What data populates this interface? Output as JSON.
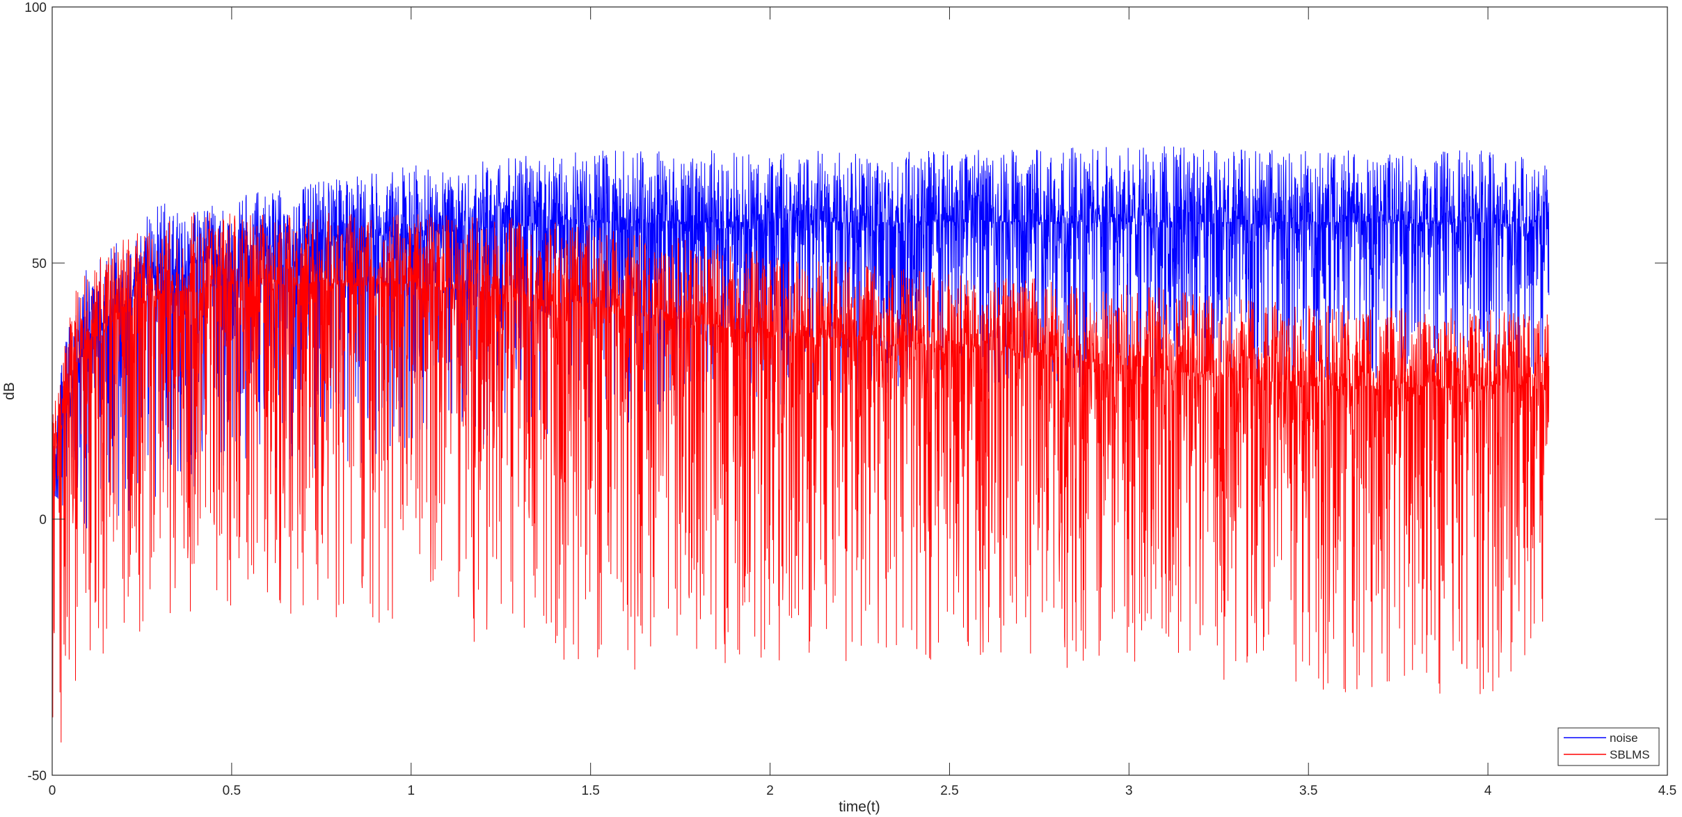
{
  "chart_data": {
    "type": "line",
    "title": "",
    "xlabel": "time(t)",
    "ylabel": "dB",
    "xlim": [
      0,
      4.5
    ],
    "ylim": [
      -50,
      100
    ],
    "x_ticks": [
      0,
      0.5,
      1,
      1.5,
      2,
      2.5,
      3,
      3.5,
      4,
      4.5
    ],
    "x_tick_labels": [
      "0",
      "0.5",
      "1",
      "1.5",
      "2",
      "2.5",
      "3",
      "3.5",
      "4",
      "4.5"
    ],
    "y_ticks": [
      -50,
      0,
      50,
      100
    ],
    "y_tick_labels": [
      "-50",
      "0",
      "50",
      "100"
    ],
    "grid": false,
    "legend_position": "bottom-right",
    "x_end": 4.17,
    "series": [
      {
        "name": "noise",
        "color": "#0000ff",
        "envelope": {
          "t": [
            0,
            0.05,
            0.1,
            0.2,
            0.3,
            0.4,
            0.5,
            0.75,
            1.0,
            1.5,
            2.0,
            2.5,
            3.0,
            3.5,
            4.0,
            4.17
          ],
          "upper": [
            20,
            40,
            50,
            55,
            62,
            60,
            63,
            66,
            69,
            72,
            72,
            72,
            73,
            72,
            72,
            70
          ],
          "lower": [
            5,
            0,
            -2,
            -1,
            2,
            5,
            8,
            10,
            12,
            18,
            22,
            24,
            26,
            27,
            28,
            28
          ],
          "median": [
            10,
            25,
            35,
            42,
            48,
            50,
            52,
            54,
            56,
            58,
            58,
            58,
            58,
            58,
            58,
            57
          ]
        }
      },
      {
        "name": "SBLMS",
        "color": "#ff0000",
        "envelope": {
          "t": [
            0,
            0.05,
            0.1,
            0.2,
            0.3,
            0.4,
            0.5,
            0.75,
            1.0,
            1.5,
            2.0,
            2.5,
            3.0,
            3.5,
            4.0,
            4.17
          ],
          "upper": [
            20,
            42,
            50,
            55,
            58,
            60,
            60,
            60,
            60,
            58,
            52,
            48,
            46,
            42,
            41,
            40
          ],
          "lower": [
            -50,
            -40,
            -30,
            -25,
            -20,
            -18,
            -17,
            -20,
            -22,
            -30,
            -28,
            -28,
            -30,
            -35,
            -35,
            -30
          ],
          "median": [
            10,
            28,
            35,
            40,
            44,
            45,
            46,
            46,
            46,
            42,
            36,
            34,
            30,
            26,
            26,
            26
          ]
        }
      }
    ]
  }
}
